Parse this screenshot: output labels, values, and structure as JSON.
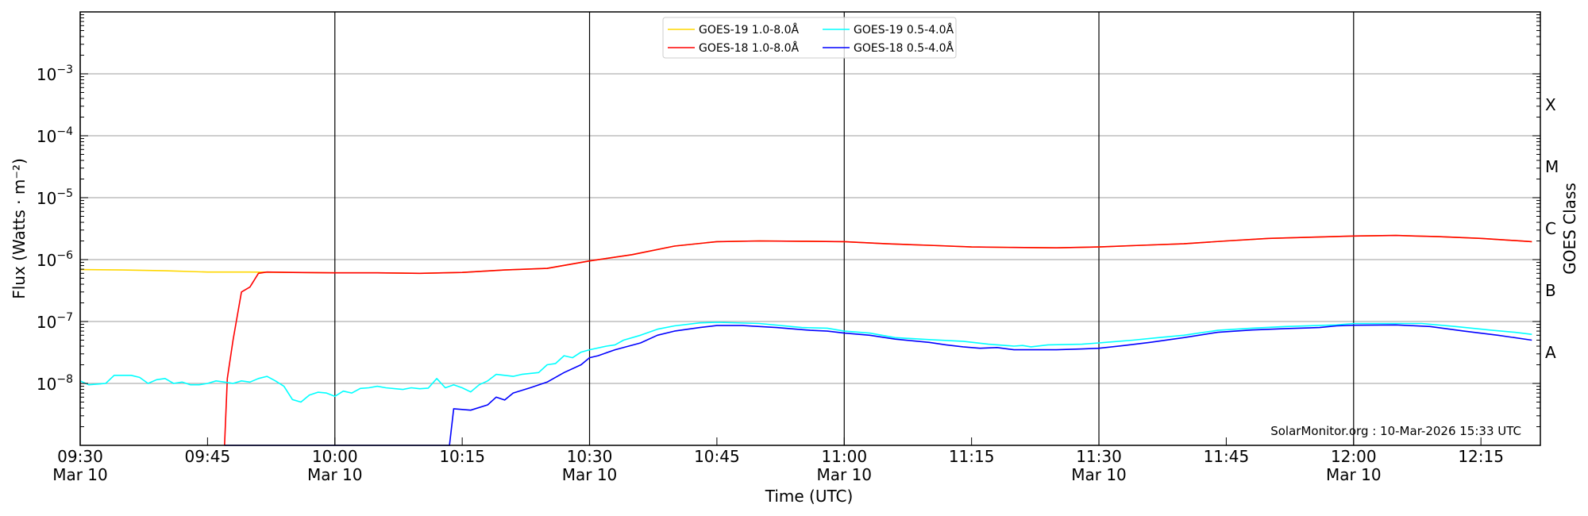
{
  "chart_data": {
    "type": "line",
    "title": "",
    "xlabel": "Time (UTC)",
    "ylabel": "Flux (Watts · m⁻²)",
    "ylabel_right": "GOES Class",
    "yscale": "log",
    "ylim": [
      1e-09,
      0.01
    ],
    "xlim": [
      "09:30",
      "12:22"
    ],
    "grid": true,
    "legend_position": "top-center",
    "watermark": "SolarMonitor.org : 10-Mar-2026 15:33 UTC",
    "yticks": [
      {
        "value": 0.001,
        "base": "10",
        "exp": "−3"
      },
      {
        "value": 0.0001,
        "base": "10",
        "exp": "−4"
      },
      {
        "value": 1e-05,
        "base": "10",
        "exp": "−5"
      },
      {
        "value": 1e-06,
        "base": "10",
        "exp": "−6"
      },
      {
        "value": 1e-07,
        "base": "10",
        "exp": "−7"
      },
      {
        "value": 1e-08,
        "base": "10",
        "exp": "−8"
      }
    ],
    "goes_classes": [
      {
        "label": "X",
        "value": 0.000316
      },
      {
        "label": "M",
        "value": 3.16e-05
      },
      {
        "label": "C",
        "value": 3.16e-06
      },
      {
        "label": "B",
        "value": 3.16e-07
      },
      {
        "label": "A",
        "value": 3.16e-08
      }
    ],
    "xticks": [
      {
        "time": "09:30",
        "label": "09:30",
        "sublabel": "Mar 10"
      },
      {
        "time": "09:45",
        "label": "09:45",
        "sublabel": ""
      },
      {
        "time": "10:00",
        "label": "10:00",
        "sublabel": "Mar 10"
      },
      {
        "time": "10:15",
        "label": "10:15",
        "sublabel": ""
      },
      {
        "time": "10:30",
        "label": "10:30",
        "sublabel": "Mar 10"
      },
      {
        "time": "10:45",
        "label": "10:45",
        "sublabel": ""
      },
      {
        "time": "11:00",
        "label": "11:00",
        "sublabel": "Mar 10"
      },
      {
        "time": "11:15",
        "label": "11:15",
        "sublabel": ""
      },
      {
        "time": "11:30",
        "label": "11:30",
        "sublabel": "Mar 10"
      },
      {
        "time": "11:45",
        "label": "11:45",
        "sublabel": ""
      },
      {
        "time": "12:00",
        "label": "12:00",
        "sublabel": "Mar 10"
      },
      {
        "time": "12:15",
        "label": "12:15",
        "sublabel": ""
      }
    ],
    "series": [
      {
        "name": "GOES-19 1.0-8.0Å",
        "color": "#ffd700",
        "x": [
          "09:30",
          "09:35",
          "09:40",
          "09:45",
          "09:50",
          "09:55",
          "10:00",
          "10:05",
          "10:10",
          "10:15",
          "10:20",
          "10:25",
          "10:30",
          "10:35",
          "10:40",
          "10:45",
          "10:50",
          "10:55",
          "11:00",
          "11:05",
          "11:10",
          "11:15",
          "11:20",
          "11:25",
          "11:30",
          "11:35",
          "11:40",
          "11:45",
          "11:50",
          "11:55",
          "12:00",
          "12:05",
          "12:10",
          "12:15",
          "12:21"
        ],
        "y": [
          6.9e-07,
          6.8e-07,
          6.6e-07,
          6.3e-07,
          6.3e-07,
          6.2e-07,
          6.1e-07,
          6.1e-07,
          6e-07,
          6.2e-07,
          6.8e-07,
          7.2e-07,
          9.5e-07,
          1.2e-06,
          1.65e-06,
          1.95e-06,
          2e-06,
          1.98e-06,
          1.95e-06,
          1.8e-06,
          1.7e-06,
          1.6e-06,
          1.57e-06,
          1.55e-06,
          1.6e-06,
          1.7e-06,
          1.8e-06,
          2e-06,
          2.2e-06,
          2.3e-06,
          2.4e-06,
          2.45e-06,
          2.35e-06,
          2.2e-06,
          1.95e-06
        ]
      },
      {
        "name": "GOES-18 1.0-8.0Å",
        "color": "#ff0000",
        "x": [
          "09:47",
          "09:47:20",
          "09:48",
          "09:49",
          "09:50",
          "09:51",
          "09:52",
          "09:55",
          "10:00",
          "10:05",
          "10:10",
          "10:15",
          "10:20",
          "10:25",
          "10:30",
          "10:35",
          "10:40",
          "10:45",
          "10:50",
          "10:55",
          "11:00",
          "11:05",
          "11:10",
          "11:15",
          "11:20",
          "11:25",
          "11:30",
          "11:35",
          "11:40",
          "11:45",
          "11:50",
          "11:55",
          "12:00",
          "12:05",
          "12:10",
          "12:15",
          "12:21"
        ],
        "y": [
          1e-09,
          1.2e-08,
          5e-08,
          3e-07,
          3.6e-07,
          6e-07,
          6.3e-07,
          6.2e-07,
          6.1e-07,
          6.1e-07,
          6e-07,
          6.2e-07,
          6.8e-07,
          7.2e-07,
          9.5e-07,
          1.2e-06,
          1.65e-06,
          1.95e-06,
          2e-06,
          1.98e-06,
          1.95e-06,
          1.8e-06,
          1.7e-06,
          1.6e-06,
          1.57e-06,
          1.55e-06,
          1.6e-06,
          1.7e-06,
          1.8e-06,
          2e-06,
          2.2e-06,
          2.3e-06,
          2.4e-06,
          2.45e-06,
          2.35e-06,
          2.2e-06,
          1.95e-06
        ]
      },
      {
        "name": "GOES-19 0.5-4.0Å",
        "color": "#00ffff",
        "x": [
          "09:30",
          "09:31",
          "09:33",
          "09:34",
          "09:36",
          "09:37",
          "09:38",
          "09:39",
          "09:40",
          "09:41",
          "09:42",
          "09:43",
          "09:44",
          "09:45",
          "09:46",
          "09:47",
          "09:48",
          "09:49",
          "09:50",
          "09:51",
          "09:52",
          "09:53",
          "09:54",
          "09:55",
          "09:56",
          "09:57",
          "09:58",
          "09:59",
          "10:00",
          "10:01",
          "10:02",
          "10:03",
          "10:04",
          "10:05",
          "10:06",
          "10:08",
          "10:09",
          "10:10",
          "10:11",
          "10:12",
          "10:13",
          "10:14",
          "10:15",
          "10:16",
          "10:17",
          "10:18",
          "10:19",
          "10:20",
          "10:21",
          "10:22",
          "10:24",
          "10:25",
          "10:26",
          "10:27",
          "10:28",
          "10:29",
          "10:30",
          "10:32",
          "10:33",
          "10:34",
          "10:36",
          "10:38",
          "10:40",
          "10:43",
          "10:45",
          "10:50",
          "10:55",
          "10:58",
          "11:00",
          "11:03",
          "11:06",
          "11:10",
          "11:14",
          "11:17",
          "11:20",
          "11:21",
          "11:22",
          "11:24",
          "11:28",
          "11:30",
          "11:34",
          "11:37",
          "11:40",
          "11:44",
          "11:48",
          "11:52",
          "11:58",
          "12:00",
          "12:08",
          "12:12",
          "12:16",
          "12:19",
          "12:21"
        ],
        "y": [
          1.1e-08,
          9.5e-09,
          1e-08,
          1.35e-08,
          1.35e-08,
          1.25e-08,
          1e-08,
          1.15e-08,
          1.2e-08,
          1e-08,
          1.05e-08,
          9.5e-09,
          9.5e-09,
          1e-08,
          1.1e-08,
          1.05e-08,
          1e-08,
          1.1e-08,
          1.05e-08,
          1.2e-08,
          1.3e-08,
          1.1e-08,
          9e-09,
          5.5e-09,
          5e-09,
          6.5e-09,
          7.2e-09,
          7e-09,
          6.2e-09,
          7.5e-09,
          7e-09,
          8.3e-09,
          8.5e-09,
          9e-09,
          8.5e-09,
          8e-09,
          8.5e-09,
          8.2e-09,
          8.4e-09,
          1.2e-08,
          8.5e-09,
          9.5e-09,
          8.5e-09,
          7.3e-09,
          9.5e-09,
          1.1e-08,
          1.4e-08,
          1.35e-08,
          1.3e-08,
          1.4e-08,
          1.5e-08,
          2e-08,
          2.1e-08,
          2.8e-08,
          2.6e-08,
          3.2e-08,
          3.5e-08,
          4e-08,
          4.2e-08,
          5e-08,
          6e-08,
          7.5e-08,
          8.5e-08,
          9.5e-08,
          9.7e-08,
          9.3e-08,
          8e-08,
          7.8e-08,
          7e-08,
          6.5e-08,
          5.5e-08,
          5.1e-08,
          4.8e-08,
          4.3e-08,
          4e-08,
          4.1e-08,
          3.9e-08,
          4.2e-08,
          4.3e-08,
          4.5e-08,
          5e-08,
          5.5e-08,
          6e-08,
          7.2e-08,
          7.8e-08,
          8.3e-08,
          8.8e-08,
          9.3e-08,
          9.3e-08,
          8.3e-08,
          7.3e-08,
          6.7e-08,
          6.2e-08
        ]
      },
      {
        "name": "GOES-18 0.5-4.0Å",
        "color": "#0000ff",
        "x": [
          "09:47",
          "10:13:30",
          "10:14",
          "10:16",
          "10:18",
          "10:19",
          "10:20",
          "10:21",
          "10:23",
          "10:25",
          "10:27",
          "10:29",
          "10:30",
          "10:31",
          "10:33",
          "10:36",
          "10:38",
          "10:40",
          "10:43",
          "10:45",
          "10:48",
          "10:52",
          "10:56",
          "10:58",
          "11:00",
          "11:03",
          "11:06",
          "11:10",
          "11:12",
          "11:14",
          "11:16",
          "11:18",
          "11:20",
          "11:25",
          "11:28",
          "11:30",
          "11:33",
          "11:36",
          "11:40",
          "11:44",
          "11:48",
          "11:52",
          "11:56",
          "11:58",
          "12:00",
          "12:05",
          "12:09",
          "12:13",
          "12:17",
          "12:21"
        ],
        "y": [
          1e-09,
          1e-09,
          3.9e-09,
          3.7e-09,
          4.5e-09,
          6e-09,
          5.4e-09,
          7e-09,
          8.5e-09,
          1.05e-08,
          1.5e-08,
          2e-08,
          2.6e-08,
          2.8e-08,
          3.5e-08,
          4.5e-08,
          6e-08,
          7e-08,
          8e-08,
          8.6e-08,
          8.6e-08,
          8e-08,
          7.2e-08,
          7e-08,
          6.5e-08,
          6e-08,
          5.2e-08,
          4.6e-08,
          4.2e-08,
          3.9e-08,
          3.7e-08,
          3.8e-08,
          3.5e-08,
          3.5e-08,
          3.6e-08,
          3.7e-08,
          4.1e-08,
          4.6e-08,
          5.5e-08,
          6.7e-08,
          7.3e-08,
          7.7e-08,
          8e-08,
          8.5e-08,
          8.7e-08,
          8.8e-08,
          8.3e-08,
          7e-08,
          6e-08,
          5e-08
        ]
      }
    ]
  }
}
